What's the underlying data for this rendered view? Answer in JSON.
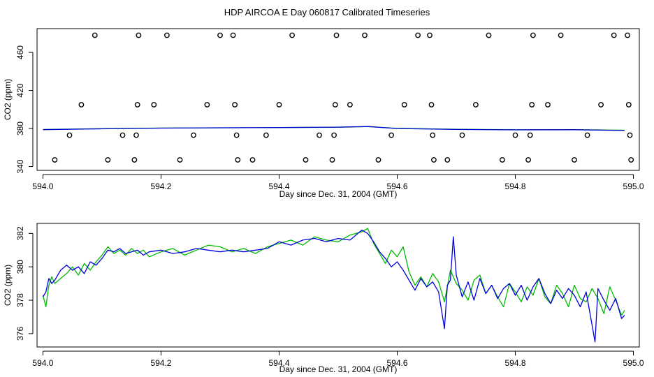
{
  "title": "HDP AIRCOA E  Day 060817  Calibrated Timeseries",
  "chart_data": [
    {
      "type": "scatter",
      "xlabel": "Day since Dec. 31, 2004 (GMT)",
      "ylabel": "CO2 (ppm)",
      "xlim": [
        593.99,
        595.01
      ],
      "ylim": [
        336,
        485
      ],
      "xticks": [
        "594.0",
        "594.2",
        "594.4",
        "594.6",
        "594.8",
        "595.0"
      ],
      "yticks": [
        "340",
        "380",
        "420",
        "460"
      ],
      "grid": false,
      "legend": "none",
      "colors": {
        "series_a": "#00bb00",
        "series_b": "#0000dd",
        "markers": "#000000"
      },
      "points": {
        "x": [
          594.02,
          594.045,
          594.065,
          594.088,
          594.11,
          594.135,
          594.155,
          594.158,
          594.16,
          594.162,
          594.188,
          594.21,
          594.232,
          594.255,
          594.278,
          594.3,
          594.322,
          594.325,
          594.328,
          594.33,
          594.355,
          594.378,
          594.4,
          594.422,
          594.445,
          594.468,
          594.49,
          594.493,
          594.495,
          594.497,
          594.52,
          594.545,
          594.568,
          594.59,
          594.612,
          594.635,
          594.655,
          594.658,
          594.66,
          594.662,
          594.685,
          594.71,
          594.733,
          594.755,
          594.778,
          594.8,
          594.822,
          594.825,
          594.828,
          594.83,
          594.855,
          594.877,
          594.9,
          594.922,
          594.945,
          594.967,
          594.99,
          594.992,
          594.994,
          594.996
        ],
        "y": [
          347,
          373,
          405,
          478,
          347,
          373,
          347,
          373,
          405,
          478,
          405,
          478,
          347,
          373,
          405,
          478,
          478,
          405,
          373,
          347,
          347,
          373,
          405,
          478,
          347,
          373,
          347,
          373,
          405,
          478,
          405,
          478,
          347,
          373,
          405,
          478,
          478,
          405,
          373,
          347,
          347,
          373,
          405,
          478,
          347,
          373,
          347,
          373,
          405,
          478,
          405,
          478,
          347,
          373,
          405,
          478,
          478,
          405,
          373,
          347
        ]
      },
      "series": [
        {
          "values_x": [
            594.0,
            594.1,
            594.2,
            594.3,
            594.4,
            594.5,
            594.55,
            594.6,
            594.7,
            594.8,
            594.9,
            594.985
          ],
          "values_y": [
            379.0,
            379.8,
            380.5,
            380.7,
            381.0,
            381.3,
            382.0,
            380.2,
            379.2,
            378.7,
            378.9,
            378.3
          ]
        },
        {
          "values_x": [
            594.0,
            594.1,
            594.2,
            594.3,
            594.4,
            594.5,
            594.55,
            594.6,
            594.7,
            594.8,
            594.9,
            594.985
          ],
          "values_y": [
            378.8,
            379.7,
            380.4,
            380.8,
            381.0,
            381.4,
            382.1,
            380.0,
            379.0,
            378.6,
            378.7,
            377.9
          ]
        }
      ]
    },
    {
      "type": "line",
      "xlabel": "Day since Dec. 31, 2004 (GMT)",
      "ylabel": "CO2 (ppm)",
      "xlim": [
        593.99,
        595.01
      ],
      "ylim": [
        375.2,
        382.6
      ],
      "xticks": [
        "594.0",
        "594.2",
        "594.4",
        "594.6",
        "594.8",
        "595.0"
      ],
      "yticks": [
        "376",
        "378",
        "380",
        "382"
      ],
      "grid": false,
      "legend": "none",
      "series": [
        {
          "color": "#00bb00",
          "x": [
            594.0,
            594.005,
            594.01,
            594.015,
            594.02,
            594.03,
            594.04,
            594.05,
            594.06,
            594.07,
            594.08,
            594.09,
            594.1,
            594.11,
            594.12,
            594.13,
            594.14,
            594.15,
            594.16,
            594.17,
            594.18,
            594.2,
            594.22,
            594.24,
            594.26,
            594.28,
            594.3,
            594.32,
            594.34,
            594.36,
            594.38,
            594.4,
            594.42,
            594.44,
            594.46,
            594.48,
            594.5,
            594.52,
            594.54,
            594.55,
            594.56,
            594.57,
            594.58,
            594.59,
            594.6,
            594.61,
            594.62,
            594.63,
            594.64,
            594.65,
            594.66,
            594.67,
            594.68,
            594.69,
            594.7,
            594.71,
            594.72,
            594.73,
            594.74,
            594.75,
            594.76,
            594.77,
            594.78,
            594.79,
            594.8,
            594.81,
            594.82,
            594.83,
            594.84,
            594.85,
            594.86,
            594.87,
            594.88,
            594.89,
            594.9,
            594.91,
            594.92,
            594.93,
            594.94,
            594.95,
            594.96,
            594.97,
            594.98,
            594.985
          ],
          "y": [
            378.3,
            377.6,
            378.9,
            379.4,
            379.0,
            379.3,
            379.6,
            380.0,
            379.5,
            380.2,
            379.8,
            380.3,
            380.7,
            381.2,
            380.8,
            381.0,
            380.7,
            381.1,
            380.8,
            381.0,
            380.6,
            380.9,
            381.1,
            380.7,
            381.0,
            381.3,
            381.2,
            380.9,
            381.1,
            380.8,
            381.2,
            381.4,
            381.6,
            381.3,
            381.8,
            381.6,
            381.5,
            381.9,
            382.1,
            382.3,
            381.4,
            380.8,
            380.2,
            381.0,
            380.6,
            381.2,
            379.7,
            378.9,
            379.4,
            378.8,
            379.6,
            379.1,
            377.9,
            379.8,
            379.0,
            378.6,
            378.0,
            379.2,
            379.5,
            378.4,
            378.9,
            378.2,
            377.6,
            379.0,
            378.5,
            377.9,
            378.8,
            378.3,
            379.3,
            378.2,
            377.8,
            378.9,
            378.4,
            377.6,
            378.9,
            378.1,
            377.9,
            378.7,
            378.1,
            377.2,
            378.8,
            378.0,
            377.1,
            377.4
          ]
        },
        {
          "color": "#0000dd",
          "x": [
            594.0,
            594.005,
            594.01,
            594.015,
            594.02,
            594.03,
            594.04,
            594.05,
            594.06,
            594.07,
            594.08,
            594.09,
            594.1,
            594.11,
            594.12,
            594.13,
            594.14,
            594.15,
            594.16,
            594.17,
            594.18,
            594.2,
            594.22,
            594.24,
            594.26,
            594.28,
            594.3,
            594.32,
            594.34,
            594.36,
            594.38,
            594.4,
            594.42,
            594.44,
            594.46,
            594.48,
            594.5,
            594.52,
            594.54,
            594.55,
            594.56,
            594.57,
            594.58,
            594.59,
            594.6,
            594.61,
            594.62,
            594.63,
            594.64,
            594.65,
            594.66,
            594.67,
            594.675,
            594.68,
            594.685,
            594.69,
            594.695,
            594.7,
            594.71,
            594.72,
            594.73,
            594.74,
            594.75,
            594.76,
            594.77,
            594.78,
            594.79,
            594.8,
            594.81,
            594.82,
            594.83,
            594.84,
            594.85,
            594.86,
            594.87,
            594.88,
            594.89,
            594.9,
            594.91,
            594.92,
            594.93,
            594.935,
            594.94,
            594.95,
            594.96,
            594.97,
            594.98,
            594.985
          ],
          "y": [
            378.2,
            378.5,
            379.3,
            379.0,
            379.2,
            379.8,
            380.1,
            379.8,
            380.0,
            379.6,
            380.3,
            380.1,
            380.5,
            381.0,
            380.9,
            381.1,
            380.8,
            380.9,
            381.0,
            380.7,
            380.9,
            381.0,
            380.8,
            380.9,
            381.1,
            381.0,
            380.9,
            381.0,
            380.9,
            381.0,
            381.1,
            381.5,
            381.3,
            381.6,
            381.7,
            381.5,
            381.7,
            381.6,
            382.2,
            382.0,
            381.5,
            380.9,
            380.5,
            380.0,
            380.3,
            379.8,
            379.2,
            378.6,
            379.3,
            378.8,
            379.1,
            378.5,
            377.4,
            376.3,
            378.9,
            379.2,
            381.8,
            379.5,
            378.2,
            379.1,
            378.0,
            379.3,
            378.4,
            378.9,
            378.1,
            378.7,
            379.0,
            378.3,
            378.9,
            378.0,
            378.8,
            379.3,
            378.4,
            377.8,
            378.6,
            378.1,
            378.7,
            378.3,
            377.6,
            378.5,
            376.5,
            375.5,
            378.7,
            378.0,
            377.4,
            378.1,
            376.9,
            377.1
          ]
        }
      ]
    }
  ]
}
